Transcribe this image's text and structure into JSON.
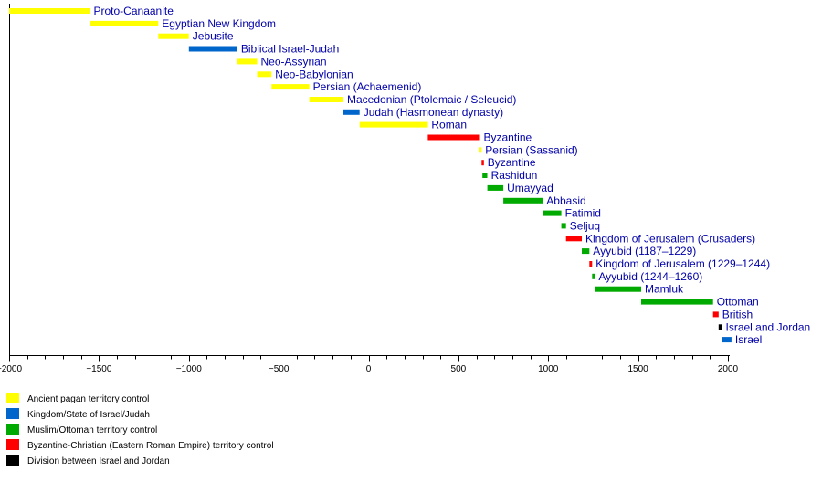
{
  "chart_data": {
    "type": "timeline",
    "xlim": [
      -2000,
      2000
    ],
    "major_ticks": [
      -2000,
      -1500,
      -1000,
      -500,
      0,
      500,
      1000,
      1500,
      2000
    ],
    "minor_tick_step": 100,
    "colors": {
      "pagan": "#ffff00",
      "israel": "#0066cc",
      "muslim": "#00aa00",
      "byzantine": "#ff0000",
      "division": "#000000"
    },
    "bars": [
      {
        "label": "Proto-Canaanite",
        "start": -2000,
        "end": -1550,
        "category": "pagan"
      },
      {
        "label": "Egyptian New Kingdom",
        "start": -1550,
        "end": -1170,
        "category": "pagan"
      },
      {
        "label": "Jebusite",
        "start": -1170,
        "end": -1000,
        "category": "pagan"
      },
      {
        "label": "Biblical Israel-Judah",
        "start": -1000,
        "end": -730,
        "category": "israel"
      },
      {
        "label": "Neo-Assyrian",
        "start": -730,
        "end": -620,
        "category": "pagan"
      },
      {
        "label": "Neo-Babylonian",
        "start": -620,
        "end": -540,
        "category": "pagan"
      },
      {
        "label": "Persian (Achaemenid)",
        "start": -540,
        "end": -330,
        "category": "pagan"
      },
      {
        "label": "Macedonian (Ptolemaic / Seleucid)",
        "start": -330,
        "end": -140,
        "category": "pagan"
      },
      {
        "label": "Judah (Hasmonean dynasty)",
        "start": -140,
        "end": -50,
        "category": "israel"
      },
      {
        "label": "Roman",
        "start": -50,
        "end": 330,
        "category": "pagan"
      },
      {
        "label": "Byzantine",
        "start": 330,
        "end": 620,
        "category": "byzantine"
      },
      {
        "label": "Persian (Sassanid)",
        "start": 614,
        "end": 629,
        "category": "pagan"
      },
      {
        "label": "Byzantine",
        "start": 629,
        "end": 638,
        "category": "byzantine"
      },
      {
        "label": "Rashidun",
        "start": 634,
        "end": 661,
        "category": "muslim"
      },
      {
        "label": "Umayyad",
        "start": 661,
        "end": 750,
        "category": "muslim"
      },
      {
        "label": "Abbasid",
        "start": 750,
        "end": 970,
        "category": "muslim"
      },
      {
        "label": "Fatimid",
        "start": 970,
        "end": 1073,
        "category": "muslim"
      },
      {
        "label": "Seljuq",
        "start": 1073,
        "end": 1099,
        "category": "muslim"
      },
      {
        "label": "Kingdom of Jerusalem (Crusaders)",
        "start": 1099,
        "end": 1187,
        "category": "byzantine"
      },
      {
        "label": "Ayyubid (1187–1229)",
        "start": 1187,
        "end": 1229,
        "category": "muslim"
      },
      {
        "label": "Kingdom of Jerusalem (1229–1244)",
        "start": 1229,
        "end": 1244,
        "category": "byzantine"
      },
      {
        "label": "Ayyubid (1244–1260)",
        "start": 1244,
        "end": 1260,
        "category": "muslim"
      },
      {
        "label": "Mamluk",
        "start": 1260,
        "end": 1517,
        "category": "muslim"
      },
      {
        "label": "Ottoman",
        "start": 1517,
        "end": 1917,
        "category": "muslim"
      },
      {
        "label": "British",
        "start": 1917,
        "end": 1948,
        "category": "byzantine"
      },
      {
        "label": "Israel and Jordan",
        "start": 1948,
        "end": 1967,
        "category": "division"
      },
      {
        "label": "Israel",
        "start": 1967,
        "end": 2020,
        "category": "israel"
      }
    ],
    "legend": [
      {
        "label": "Ancient pagan territory control",
        "category": "pagan"
      },
      {
        "label": "Kingdom/State of Israel/Judah",
        "category": "israel"
      },
      {
        "label": "Muslim/Ottoman territory control",
        "category": "muslim"
      },
      {
        "label": "Byzantine-Christian (Eastern Roman Empire) territory control",
        "category": "byzantine"
      },
      {
        "label": "Division between Israel and Jordan",
        "category": "division"
      }
    ]
  }
}
